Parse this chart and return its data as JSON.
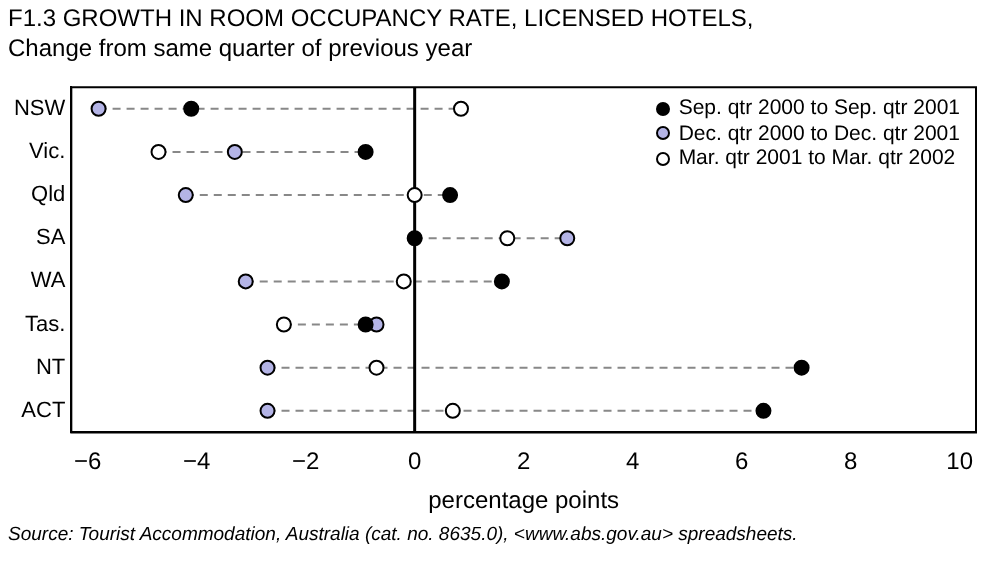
{
  "chart_data": {
    "type": "scatter",
    "orientation": "horizontal",
    "title": "F1.3 GROWTH IN ROOM OCCUPANCY RATE, LICENSED HOTELS,",
    "subtitle": "Change from same quarter of previous year",
    "xlabel": "percentage points",
    "categories": [
      "NSW",
      "Vic.",
      "Qld",
      "SA",
      "WA",
      "Tas.",
      "NT",
      "ACT"
    ],
    "series": [
      {
        "name": "Sep. qtr 2000 to Sep. qtr 2001",
        "color": "#000000",
        "values": [
          -4.1,
          -0.9,
          0.65,
          0,
          1.6,
          -0.9,
          7.1,
          6.4
        ]
      },
      {
        "name": "Dec. qtr 2000 to Dec. qtr 2001",
        "color": "#b4b4e6",
        "values": [
          -5.8,
          -3.3,
          -4.2,
          2.8,
          -3.1,
          -0.7,
          -2.7,
          -2.7
        ]
      },
      {
        "name": "Mar. qtr 2001 to Mar. qtr 2002",
        "color": "#ffffff",
        "values": [
          0.85,
          -4.7,
          0,
          1.7,
          -0.2,
          -2.4,
          -0.7,
          0.7
        ]
      }
    ],
    "xlim": [
      -6.3,
      10.3
    ],
    "xticks": [
      {
        "value": -6,
        "label": "−6"
      },
      {
        "value": -4,
        "label": "−4"
      },
      {
        "value": -2,
        "label": "−2"
      },
      0,
      2,
      4,
      6,
      8,
      10
    ],
    "ref_lines": [
      {
        "axis": "x",
        "value": 0,
        "color": "#000000"
      }
    ],
    "marker": "circle",
    "legend": "top right",
    "grid": false,
    "annotations": [
      "Source: Tourist Accommodation, Australia (cat. no. 8635.0), <www.abs.gov.au> spreadsheets."
    ]
  }
}
